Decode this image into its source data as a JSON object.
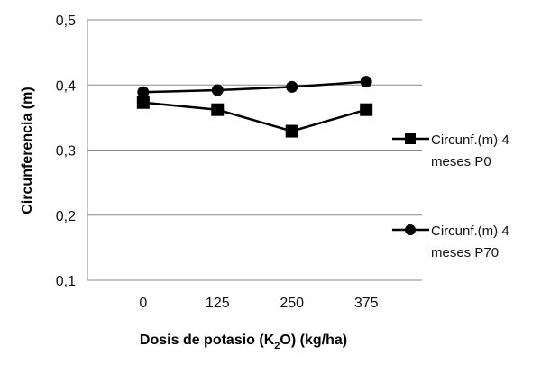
{
  "chart_data": {
    "type": "line",
    "x": [
      "0",
      "125",
      "250",
      "375"
    ],
    "ylim": [
      0.1,
      0.5
    ],
    "yticks": [
      "0,1",
      "0,2",
      "0,3",
      "0,4",
      "0,5"
    ],
    "ylabel": "Circunferencia (m)",
    "xlabel_parts": {
      "main": "Dosis de potasio (K",
      "subscript": "2",
      "rest": "O) (kg/ha)"
    },
    "grid": "horizontal",
    "legend_position": "right",
    "series": [
      {
        "name": "Circunf.(m)  4 meses P0",
        "name_lines": [
          "Circunf.(m)  4",
          "meses P0"
        ],
        "marker": "square",
        "color": "#000000",
        "values": [
          0.373,
          0.362,
          0.329,
          0.362
        ]
      },
      {
        "name": "Circunf.(m)  4 meses P70",
        "name_lines": [
          "Circunf.(m)  4",
          "meses P70"
        ],
        "marker": "circle",
        "color": "#000000",
        "values": [
          0.389,
          0.392,
          0.397,
          0.405
        ]
      }
    ]
  }
}
